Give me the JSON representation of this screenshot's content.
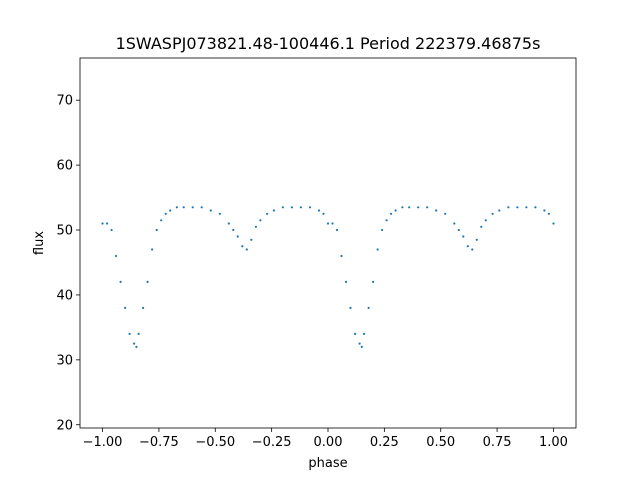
{
  "chart_data": {
    "type": "scatter",
    "title": "1SWASPJ073821.48-100446.1 Period 222379.46875s",
    "xlabel": "phase",
    "ylabel": "flux",
    "xlim": [
      -1.1,
      1.1
    ],
    "ylim": [
      19.5,
      76.5
    ],
    "xticks": [
      -1.0,
      -0.75,
      -0.5,
      -0.25,
      0.0,
      0.25,
      0.5,
      0.75,
      1.0
    ],
    "xtick_labels": [
      "−1.00",
      "−0.75",
      "−0.50",
      "−0.25",
      "0.00",
      "0.25",
      "0.50",
      "0.75",
      "1.00"
    ],
    "yticks": [
      20,
      30,
      40,
      50,
      60,
      70
    ],
    "ytick_labels": [
      "20",
      "30",
      "40",
      "50",
      "60",
      "70"
    ],
    "grid": false,
    "legend": "none",
    "marker_color": "#1f77b4",
    "series": [
      {
        "x": [
          -1.0,
          -0.98,
          -0.96,
          -0.94,
          -0.92,
          -0.9,
          -0.88,
          -0.86,
          -0.85,
          -0.84,
          -0.82,
          -0.8,
          -0.78,
          -0.76,
          -0.74,
          -0.72,
          -0.7,
          -0.67,
          -0.64,
          -0.6,
          -0.56,
          -0.52,
          -0.48,
          -0.44,
          -0.42,
          -0.4,
          -0.38,
          -0.36,
          -0.34,
          -0.32,
          -0.3,
          -0.27,
          -0.24,
          -0.2,
          -0.16,
          -0.12,
          -0.08,
          -0.04,
          -0.02,
          0.0,
          0.02,
          0.04,
          0.06,
          0.08,
          0.1,
          0.12,
          0.14,
          0.15,
          0.16,
          0.18,
          0.2,
          0.22,
          0.24,
          0.26,
          0.28,
          0.3,
          0.33,
          0.36,
          0.4,
          0.44,
          0.48,
          0.52,
          0.56,
          0.58,
          0.6,
          0.62,
          0.64,
          0.66,
          0.68,
          0.7,
          0.73,
          0.76,
          0.8,
          0.84,
          0.88,
          0.92,
          0.96,
          0.98,
          1.0
        ],
        "y": [
          51,
          51,
          50,
          46,
          42,
          38,
          34,
          32.5,
          32,
          34,
          38,
          42,
          47,
          50,
          51.5,
          52.5,
          53,
          53.5,
          53.5,
          53.5,
          53.5,
          53,
          52.5,
          51,
          50,
          49,
          47.5,
          47,
          48.5,
          50.5,
          51.5,
          52.5,
          53,
          53.5,
          53.5,
          53.5,
          53.5,
          53,
          52.5,
          51,
          51,
          50,
          46,
          42,
          38,
          34,
          32.5,
          32,
          34,
          38,
          42,
          47,
          50,
          51.5,
          52.5,
          53,
          53.5,
          53.5,
          53.5,
          53.5,
          53,
          52.5,
          51,
          50,
          49,
          47.5,
          47,
          48.5,
          50.5,
          51.5,
          52.5,
          53,
          53.5,
          53.5,
          53.5,
          53.5,
          53,
          52.5,
          51
        ]
      }
    ]
  }
}
